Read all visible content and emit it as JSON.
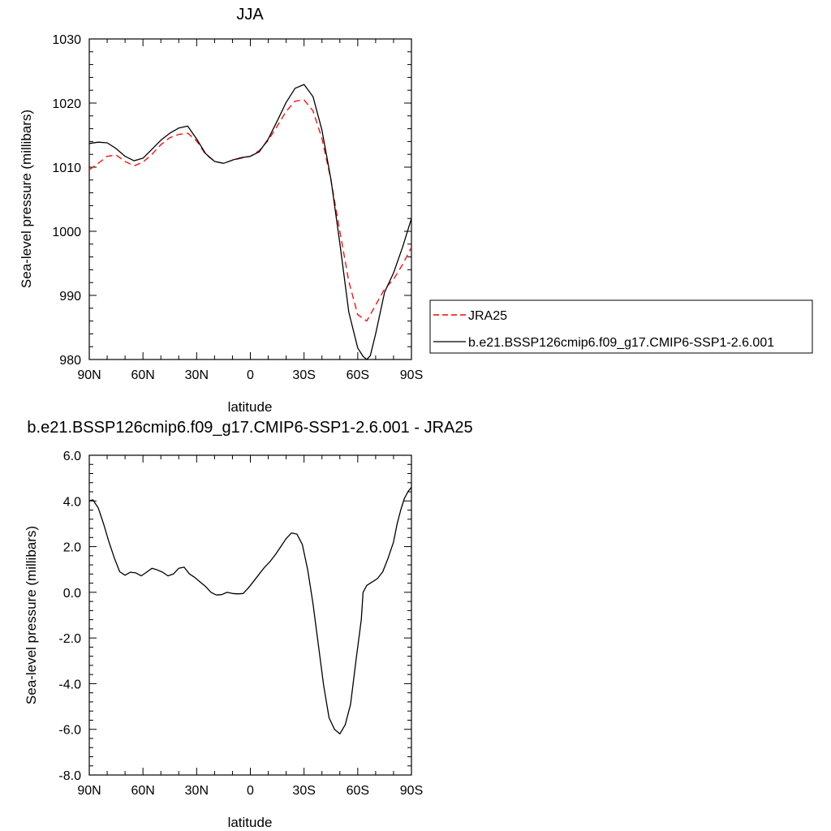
{
  "chart_data": [
    {
      "type": "line",
      "title": "JJA",
      "xlabel": "latitude",
      "ylabel": "Sea-level pressure (millibars)",
      "x_range": [
        90,
        -90
      ],
      "x_ticks": [
        90,
        60,
        30,
        0,
        -30,
        -60,
        -90
      ],
      "x_tick_labels": [
        "90N",
        "60N",
        "30N",
        "0",
        "30S",
        "60S",
        "90S"
      ],
      "ylim": [
        980,
        1030
      ],
      "y_ticks": [
        980,
        990,
        1000,
        1010,
        1020,
        1030
      ],
      "y_tick_labels": [
        "980",
        "990",
        "1000",
        "1010",
        "1020",
        "1030"
      ],
      "legend_position": "right",
      "series": [
        {
          "name": "JRA25",
          "color": "#ff0000",
          "dash": true,
          "x": [
            90,
            85,
            80,
            75,
            70,
            65,
            60,
            55,
            50,
            45,
            40,
            35,
            30,
            25,
            20,
            15,
            10,
            5,
            0,
            -5,
            -10,
            -15,
            -20,
            -25,
            -30,
            -35,
            -40,
            -45,
            -50,
            -55,
            -60,
            -65,
            -70,
            -75,
            -80,
            -85,
            -90
          ],
          "values": [
            1009.6,
            1010.6,
            1011.7,
            1011.9,
            1010.9,
            1010.2,
            1010.8,
            1012.0,
            1013.5,
            1014.6,
            1015.1,
            1015.3,
            1014.1,
            1012.0,
            1010.9,
            1010.6,
            1011.1,
            1011.4,
            1011.7,
            1012.6,
            1014.2,
            1016.4,
            1018.7,
            1020.3,
            1020.5,
            1018.8,
            1014.5,
            1008.0,
            1000.0,
            992.2,
            987.0,
            986.0,
            988.5,
            991.0,
            992.5,
            994.8,
            997.5
          ]
        },
        {
          "name": "b.e21.BSSP126cmip6.f09_g17.CMIP6-SSP1-2.6.001",
          "color": "#000000",
          "dash": false,
          "x": [
            90,
            85,
            80,
            75,
            70,
            65,
            60,
            55,
            50,
            45,
            40,
            35,
            30,
            25,
            20,
            15,
            10,
            5,
            0,
            -5,
            -10,
            -15,
            -20,
            -25,
            -30,
            -35,
            -40,
            -45,
            -50,
            -55,
            -60,
            -63,
            -65,
            -67,
            -70,
            -75,
            -80,
            -85,
            -90
          ],
          "values": [
            1013.7,
            1013.9,
            1013.8,
            1012.9,
            1011.7,
            1011.0,
            1011.4,
            1012.8,
            1014.2,
            1015.3,
            1016.1,
            1016.4,
            1014.4,
            1012.1,
            1010.9,
            1010.6,
            1011.1,
            1011.5,
            1011.7,
            1012.4,
            1014.4,
            1017.2,
            1020.1,
            1022.3,
            1022.9,
            1021.0,
            1015.8,
            1008.1,
            998.1,
            987.4,
            981.8,
            980.5,
            980.0,
            980.6,
            984.0,
            990.5,
            993.5,
            997.5,
            1002.0
          ]
        }
      ]
    },
    {
      "type": "line",
      "title": "b.e21.BSSP126cmip6.f09_g17.CMIP6-SSP1-2.6.001 - JRA25",
      "xlabel": "latitude",
      "ylabel": "Sea-level pressure (millibars)",
      "x_range": [
        90,
        -90
      ],
      "x_ticks": [
        90,
        60,
        30,
        0,
        -30,
        -60,
        -90
      ],
      "x_tick_labels": [
        "90N",
        "60N",
        "30N",
        "0",
        "30S",
        "60S",
        "90S"
      ],
      "ylim": [
        -8,
        6
      ],
      "y_ticks": [
        -8,
        -6,
        -4,
        -2,
        0,
        2,
        4,
        6
      ],
      "y_tick_labels": [
        "-8.0",
        "-6.0",
        "-4.0",
        "-2.0",
        "0.0",
        "2.0",
        "4.0",
        "6.0"
      ],
      "series": [
        {
          "color": "#000000",
          "dash": false,
          "x": [
            90,
            88,
            85,
            82,
            79,
            76,
            73,
            70,
            67,
            64,
            61,
            58,
            55,
            52,
            49,
            46,
            43,
            40,
            37,
            34,
            31,
            28,
            25,
            22,
            19,
            16,
            13,
            10,
            7,
            4,
            1,
            -2,
            -5,
            -8,
            -11,
            -14,
            -17,
            -20,
            -23,
            -26,
            -29,
            -32,
            -35,
            -38,
            -41,
            -44,
            -47,
            -50,
            -53,
            -56,
            -59,
            -62,
            -63,
            -65,
            -68,
            -71,
            -74,
            -77,
            -80,
            -82,
            -84,
            -86,
            -88,
            -90
          ],
          "values": [
            4.0,
            4.05,
            3.7,
            3.0,
            2.2,
            1.5,
            0.9,
            0.75,
            0.88,
            0.85,
            0.72,
            0.88,
            1.05,
            0.98,
            0.88,
            0.72,
            0.8,
            1.05,
            1.1,
            0.8,
            0.65,
            0.45,
            0.25,
            0.0,
            -0.12,
            -0.1,
            0.0,
            -0.05,
            -0.07,
            -0.05,
            0.2,
            0.5,
            0.8,
            1.1,
            1.35,
            1.65,
            2.0,
            2.35,
            2.6,
            2.55,
            2.1,
            1.0,
            -0.5,
            -2.3,
            -4.1,
            -5.5,
            -6.0,
            -6.2,
            -5.8,
            -4.9,
            -3.0,
            -1.2,
            0.0,
            0.3,
            0.45,
            0.6,
            0.9,
            1.5,
            2.2,
            3.0,
            3.6,
            4.1,
            4.4,
            4.6
          ]
        }
      ]
    }
  ]
}
